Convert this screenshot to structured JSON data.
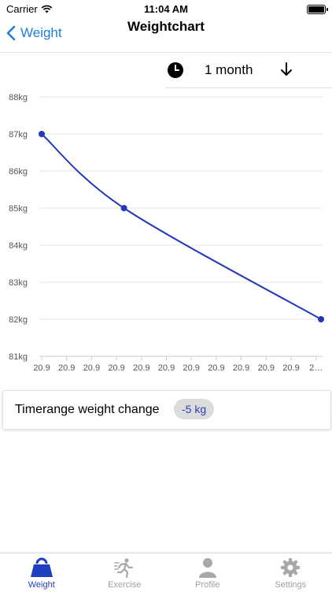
{
  "status_bar": {
    "carrier": "Carrier",
    "time": "11:04 AM",
    "battery_level": 1.0
  },
  "navbar": {
    "back_label": "Weight",
    "title": "Weightchart"
  },
  "range_selector": {
    "label": "1 month",
    "icon": "clock-icon",
    "sort_icon": "arrow-down-icon"
  },
  "chart_data": {
    "type": "line",
    "x": [
      "20.9",
      "20.9",
      "20.9",
      "20.9",
      "20.9",
      "20.9",
      "20.9",
      "20.9",
      "20.9",
      "20.9",
      "20.9",
      "2…"
    ],
    "points": [
      {
        "x_index": 0,
        "y": 87
      },
      {
        "x_index": 3.3,
        "y": 85
      },
      {
        "x_index": 11.2,
        "y": 82
      }
    ],
    "y_ticks": [
      "88kg",
      "87kg",
      "86kg",
      "85kg",
      "84kg",
      "83kg",
      "82kg",
      "81kg"
    ],
    "ylim": [
      81,
      88
    ],
    "grid": true,
    "line_color": "#2238b8"
  },
  "summary": {
    "label": "Timerange weight change",
    "value": "-5 kg"
  },
  "tabbar": {
    "items": [
      {
        "label": "Weight",
        "icon": "weight-icon",
        "active": true
      },
      {
        "label": "Exercise",
        "icon": "running-person-icon",
        "active": false
      },
      {
        "label": "Profile",
        "icon": "person-icon",
        "active": false
      },
      {
        "label": "Settings",
        "icon": "gear-icon",
        "active": false
      }
    ],
    "active_color": "#1e3fbf",
    "inactive_color": "#a0a0a0"
  }
}
